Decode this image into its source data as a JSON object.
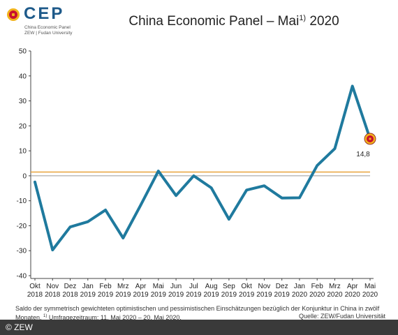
{
  "logo": {
    "name": "CEP",
    "sub1": "China Economic Panel",
    "sub2": "ZEW | Fudan University"
  },
  "header": {
    "title": "China Economic Panel – Mai",
    "title_sup": "1)",
    "title_year": "2020"
  },
  "chart_data": {
    "type": "line",
    "categories": [
      [
        "Okt",
        "2018"
      ],
      [
        "Nov",
        "2018"
      ],
      [
        "Dez",
        "2018"
      ],
      [
        "Jan",
        "2019"
      ],
      [
        "Feb",
        "2019"
      ],
      [
        "Mrz",
        "2019"
      ],
      [
        "Apr",
        "2019"
      ],
      [
        "Mai",
        "2019"
      ],
      [
        "Jun",
        "2019"
      ],
      [
        "Jul",
        "2019"
      ],
      [
        "Aug",
        "2019"
      ],
      [
        "Sep",
        "2019"
      ],
      [
        "Okt",
        "2019"
      ],
      [
        "Nov",
        "2019"
      ],
      [
        "Dez",
        "2019"
      ],
      [
        "Jan",
        "2020"
      ],
      [
        "Feb",
        "2020"
      ],
      [
        "Mrz",
        "2020"
      ],
      [
        "Apr",
        "2020"
      ],
      [
        "Mai",
        "2020"
      ]
    ],
    "series": [
      {
        "values": [
          -2.5,
          -29.7,
          -20.5,
          -18.4,
          -13.7,
          -24.9,
          -11.7,
          1.9,
          -7.9,
          0.0,
          -4.8,
          -17.4,
          -5.7,
          -4.0,
          -8.9,
          -8.8,
          4.1,
          10.9,
          35.9,
          14.8
        ]
      }
    ],
    "reference_line": {
      "value": 1.5,
      "color": "#e8a33a"
    },
    "zero_line_color": "#9a9a9a",
    "ylim": [
      -40,
      50
    ],
    "yticks": [
      50,
      40,
      30,
      20,
      10,
      0,
      -10,
      -20,
      -30,
      -40
    ],
    "grid": false,
    "line_color": "#1f7a9e",
    "highlight": {
      "index": 19,
      "label": "14,8",
      "fill": "#c8102e",
      "ring": "#f2b21c"
    }
  },
  "footnote": {
    "line1": "Saldo der symmetrisch gewichteten optimistischen und pessimistischen Einschätzungen bezüglich der Konjunktur in China in zwölf",
    "line2": "Monaten.",
    "line2_sup": "1)",
    "line2_rest": "Umfragezeitraum: 11. Mai 2020 – 20. Mai 2020.",
    "source": "Quelle: ZEW/Fudan Universität"
  },
  "copyright": "© ZEW"
}
